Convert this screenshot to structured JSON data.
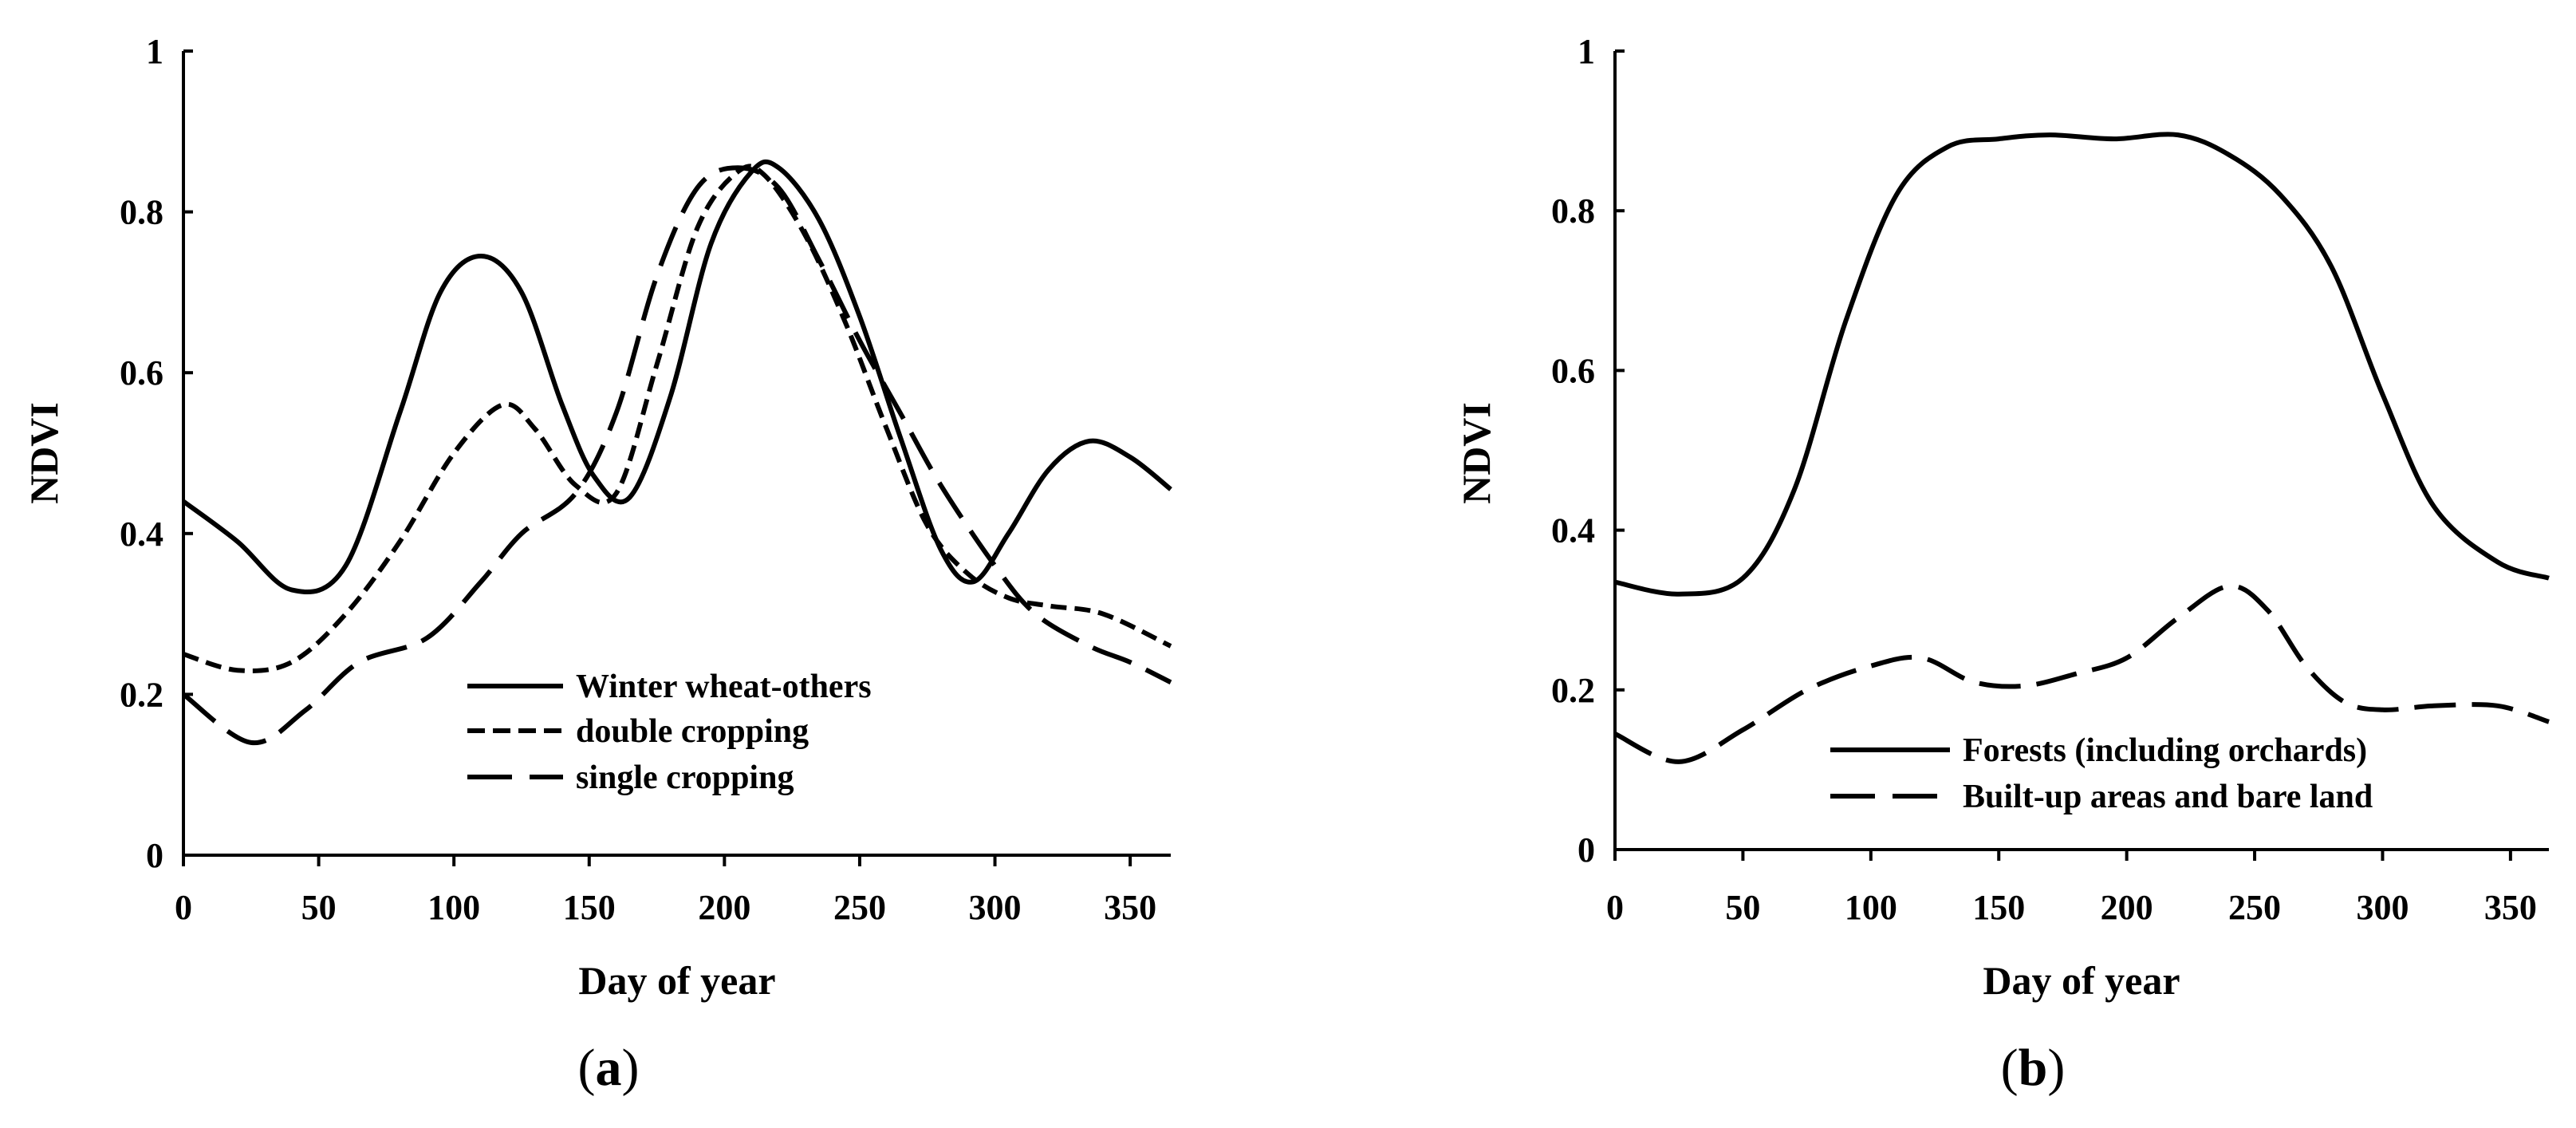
{
  "chart_data": [
    {
      "type": "line",
      "panel_label": "a",
      "title": "",
      "xlabel": "Day of year",
      "ylabel": "NDVI",
      "xlim": [
        0,
        365
      ],
      "ylim": [
        0,
        1
      ],
      "xticks": [
        0,
        50,
        100,
        150,
        200,
        250,
        300,
        350
      ],
      "yticks": [
        0,
        0.2,
        0.4,
        0.6,
        0.8,
        1
      ],
      "ytick_labels": [
        "0",
        "0.2",
        "0.4",
        "0.6",
        "0.8",
        "1"
      ],
      "grid": false,
      "legend_position": "bottom-center",
      "series": [
        {
          "name": "Winter wheat-others",
          "dash": "solid",
          "x": [
            0,
            20,
            40,
            60,
            80,
            95,
            110,
            125,
            140,
            152,
            165,
            180,
            195,
            210,
            220,
            235,
            250,
            265,
            280,
            292,
            305,
            320,
            335,
            350,
            365
          ],
          "y": [
            0.44,
            0.39,
            0.33,
            0.36,
            0.55,
            0.7,
            0.745,
            0.7,
            0.56,
            0.47,
            0.445,
            0.57,
            0.76,
            0.85,
            0.855,
            0.79,
            0.67,
            0.52,
            0.38,
            0.34,
            0.4,
            0.48,
            0.515,
            0.495,
            0.455
          ]
        },
        {
          "name": "double cropping",
          "dash": "short",
          "x": [
            0,
            20,
            40,
            60,
            80,
            100,
            118,
            130,
            145,
            160,
            175,
            190,
            205,
            215,
            230,
            245,
            260,
            275,
            290,
            305,
            320,
            340,
            365
          ],
          "y": [
            0.25,
            0.23,
            0.24,
            0.3,
            0.39,
            0.5,
            0.56,
            0.53,
            0.46,
            0.45,
            0.61,
            0.78,
            0.85,
            0.845,
            0.77,
            0.66,
            0.53,
            0.41,
            0.35,
            0.32,
            0.31,
            0.3,
            0.26
          ]
        },
        {
          "name": "single cropping",
          "dash": "long",
          "x": [
            0,
            25,
            45,
            65,
            90,
            110,
            125,
            145,
            160,
            175,
            190,
            205,
            220,
            235,
            250,
            265,
            280,
            300,
            315,
            335,
            350,
            365
          ],
          "y": [
            0.2,
            0.14,
            0.18,
            0.24,
            0.27,
            0.34,
            0.4,
            0.45,
            0.55,
            0.72,
            0.83,
            0.855,
            0.83,
            0.74,
            0.64,
            0.55,
            0.46,
            0.36,
            0.3,
            0.26,
            0.24,
            0.215
          ]
        }
      ]
    },
    {
      "type": "line",
      "panel_label": "b",
      "title": "",
      "xlabel": "Day of year",
      "ylabel": "NDVI",
      "xlim": [
        0,
        365
      ],
      "ylim": [
        0,
        1
      ],
      "xticks": [
        0,
        50,
        100,
        150,
        200,
        250,
        300,
        350
      ],
      "yticks": [
        0,
        0.2,
        0.4,
        0.6,
        0.8,
        1
      ],
      "ytick_labels": [
        "0",
        "0.2",
        "0.4",
        "0.6",
        "0.8",
        "1"
      ],
      "grid": false,
      "legend_position": "bottom-center",
      "series": [
        {
          "name": "Forests (including orchards)",
          "dash": "solid",
          "x": [
            0,
            25,
            50,
            70,
            90,
            110,
            130,
            150,
            170,
            195,
            220,
            240,
            260,
            280,
            300,
            320,
            345,
            365
          ],
          "y": [
            0.335,
            0.32,
            0.34,
            0.45,
            0.66,
            0.82,
            0.88,
            0.89,
            0.895,
            0.89,
            0.895,
            0.87,
            0.82,
            0.73,
            0.57,
            0.43,
            0.36,
            0.34
          ]
        },
        {
          "name": "Built-up areas and bare land",
          "dash": "long",
          "x": [
            0,
            25,
            50,
            75,
            100,
            120,
            140,
            160,
            180,
            200,
            220,
            240,
            255,
            270,
            285,
            300,
            320,
            345,
            365
          ],
          "y": [
            0.145,
            0.11,
            0.15,
            0.2,
            0.23,
            0.24,
            0.21,
            0.205,
            0.22,
            0.24,
            0.29,
            0.33,
            0.3,
            0.23,
            0.185,
            0.175,
            0.18,
            0.18,
            0.16
          ]
        }
      ]
    }
  ],
  "colors": {
    "line": "#000000",
    "background": "#ffffff"
  }
}
